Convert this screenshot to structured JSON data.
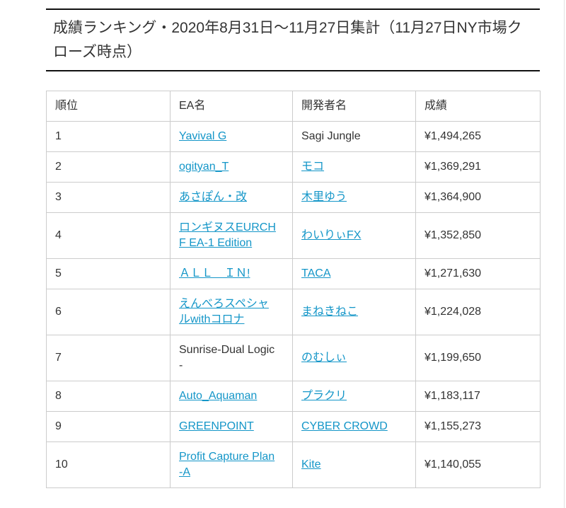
{
  "page": {
    "title": "成績ランキング・2020年8月31日～11月27日集計（11月27日NY市場クローズ時点）"
  },
  "table": {
    "columns": [
      "順位",
      "EA名",
      "開発者名",
      "成績"
    ],
    "rows": [
      {
        "rank": "1",
        "ea": "Yavival G",
        "ea_link": true,
        "dev": "Sagi Jungle",
        "dev_link": false,
        "result": "¥1,494,265"
      },
      {
        "rank": "2",
        "ea": "ogityan_T",
        "ea_link": true,
        "dev": "モコ",
        "dev_link": true,
        "result": "¥1,369,291"
      },
      {
        "rank": "3",
        "ea": "あさぽん・改",
        "ea_link": true,
        "dev": "木里ゆう",
        "dev_link": true,
        "result": "¥1,364,900"
      },
      {
        "rank": "4",
        "ea": "ロンギヌスEURCHF EA-1 Edition",
        "ea_link": true,
        "dev": "わいりぃFX",
        "dev_link": true,
        "result": "¥1,352,850"
      },
      {
        "rank": "5",
        "ea": "ＡＬＬ　ＩＮ!",
        "ea_link": true,
        "dev": "TACA",
        "dev_link": true,
        "result": "¥1,271,630"
      },
      {
        "rank": "6",
        "ea": "えんべろスペシャルwithコロナ",
        "ea_link": true,
        "dev": "まねきねこ",
        "dev_link": true,
        "result": "¥1,224,028"
      },
      {
        "rank": "7",
        "ea": "Sunrise-Dual Logic-",
        "ea_link": false,
        "dev": "のむしぃ",
        "dev_link": true,
        "result": "¥1,199,650"
      },
      {
        "rank": "8",
        "ea": "Auto_Aquaman",
        "ea_link": true,
        "dev": "プラクリ",
        "dev_link": true,
        "result": "¥1,183,117"
      },
      {
        "rank": "9",
        "ea": "GREENPOINT",
        "ea_link": true,
        "dev": "CYBER CROWD",
        "dev_link": true,
        "result": "¥1,155,273"
      },
      {
        "rank": "10",
        "ea": "Profit Capture Plan-A",
        "ea_link": true,
        "dev": "Kite",
        "dev_link": true,
        "result": "¥1,140,055"
      }
    ]
  },
  "colors": {
    "link": "#1496c8",
    "table_border": "#cccccc",
    "title_border": "#111111",
    "text": "#333333"
  }
}
